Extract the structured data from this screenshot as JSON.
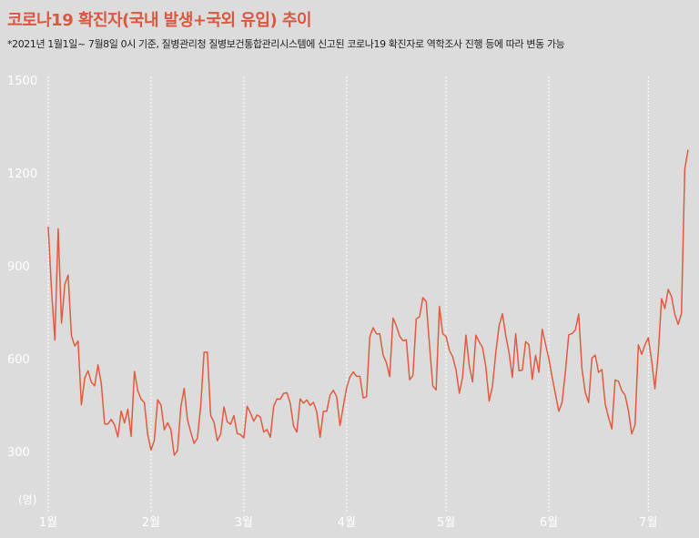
{
  "header": {
    "title": "코로나19 확진자(국내 발생+국외 유입) 추이",
    "subtitle": "*2021년 1월1일~ 7월8일 0시 기준, 질병관리청 질병보건통합관리시스템에 신고된 코로나19 확진자로 역학조사 진행 등에 따라 변동 가능"
  },
  "colors": {
    "line": "#e35a3f",
    "title": "#d9583f",
    "background": "#dcdcdc",
    "grid": "#ffffff"
  },
  "chart_data": {
    "type": "line",
    "title": "코로나19 확진자(국내 발생+국외 유입) 추이",
    "ylabel": "(명)",
    "xlabel": "",
    "ylim": [
      200,
      1500
    ],
    "yticks": [
      300,
      600,
      900,
      1200,
      1500
    ],
    "xticks": [
      {
        "label": "1월",
        "day": 1
      },
      {
        "label": "2월",
        "day": 32
      },
      {
        "label": "3월",
        "day": 60
      },
      {
        "label": "4월",
        "day": 91
      },
      {
        "label": "5월",
        "day": 121
      },
      {
        "label": "6월",
        "day": 152
      },
      {
        "label": "7월",
        "day": 182
      }
    ],
    "grid": true,
    "series": [
      {
        "values": [
          1027,
          820,
          660,
          1020,
          715,
          840,
          870,
          674,
          641,
          657,
          451,
          537,
          561,
          524,
          512,
          580,
          520,
          389,
          389,
          404,
          386,
          347,
          431,
          392,
          437,
          349,
          559,
          497,
          469,
          458,
          355,
          305,
          336,
          467,
          451,
          370,
          393,
          371,
          288,
          303,
          444,
          504,
          403,
          362,
          326,
          343,
          448,
          621,
          621,
          416,
          395,
          335,
          356,
          444,
          396,
          388,
          416,
          358,
          355,
          344,
          446,
          424,
          398,
          418,
          411,
          363,
          371,
          346,
          446,
          470,
          469,
          488,
          490,
          456,
          382,
          363,
          470,
          456,
          467,
          449,
          459,
          428,
          346,
          430,
          430,
          482,
          498,
          477,
          384,
          446,
          506,
          541,
          557,
          543,
          543,
          473,
          477,
          671,
          700,
          680,
          680,
          612,
          587,
          542,
          731,
          706,
          673,
          658,
          661,
          532,
          545,
          729,
          735,
          797,
          785,
          644,
          512,
          499,
          769,
          680,
          672,
          627,
          606,
          564,
          488,
          541,
          676,
          577,
          525,
          676,
          654,
          636,
          573,
          463,
          511,
          620,
          707,
          745,
          675,
          619,
          539,
          681,
          561,
          563,
          655,
          645,
          533,
          611,
          556,
          695,
          647,
          600,
          540,
          485,
          430,
          459,
          559,
          677,
          681,
          693,
          744,
          566,
          490,
          458,
          602,
          611,
          556,
          565,
          454,
          410,
          373,
          531,
          527,
          497,
          482,
          432,
          357,
          386,
          645,
          614,
          645,
          668,
          594,
          503,
          616,
          794,
          762,
          824,
          801,
          743,
          711,
          746,
          1212,
          1275
        ]
      }
    ]
  }
}
